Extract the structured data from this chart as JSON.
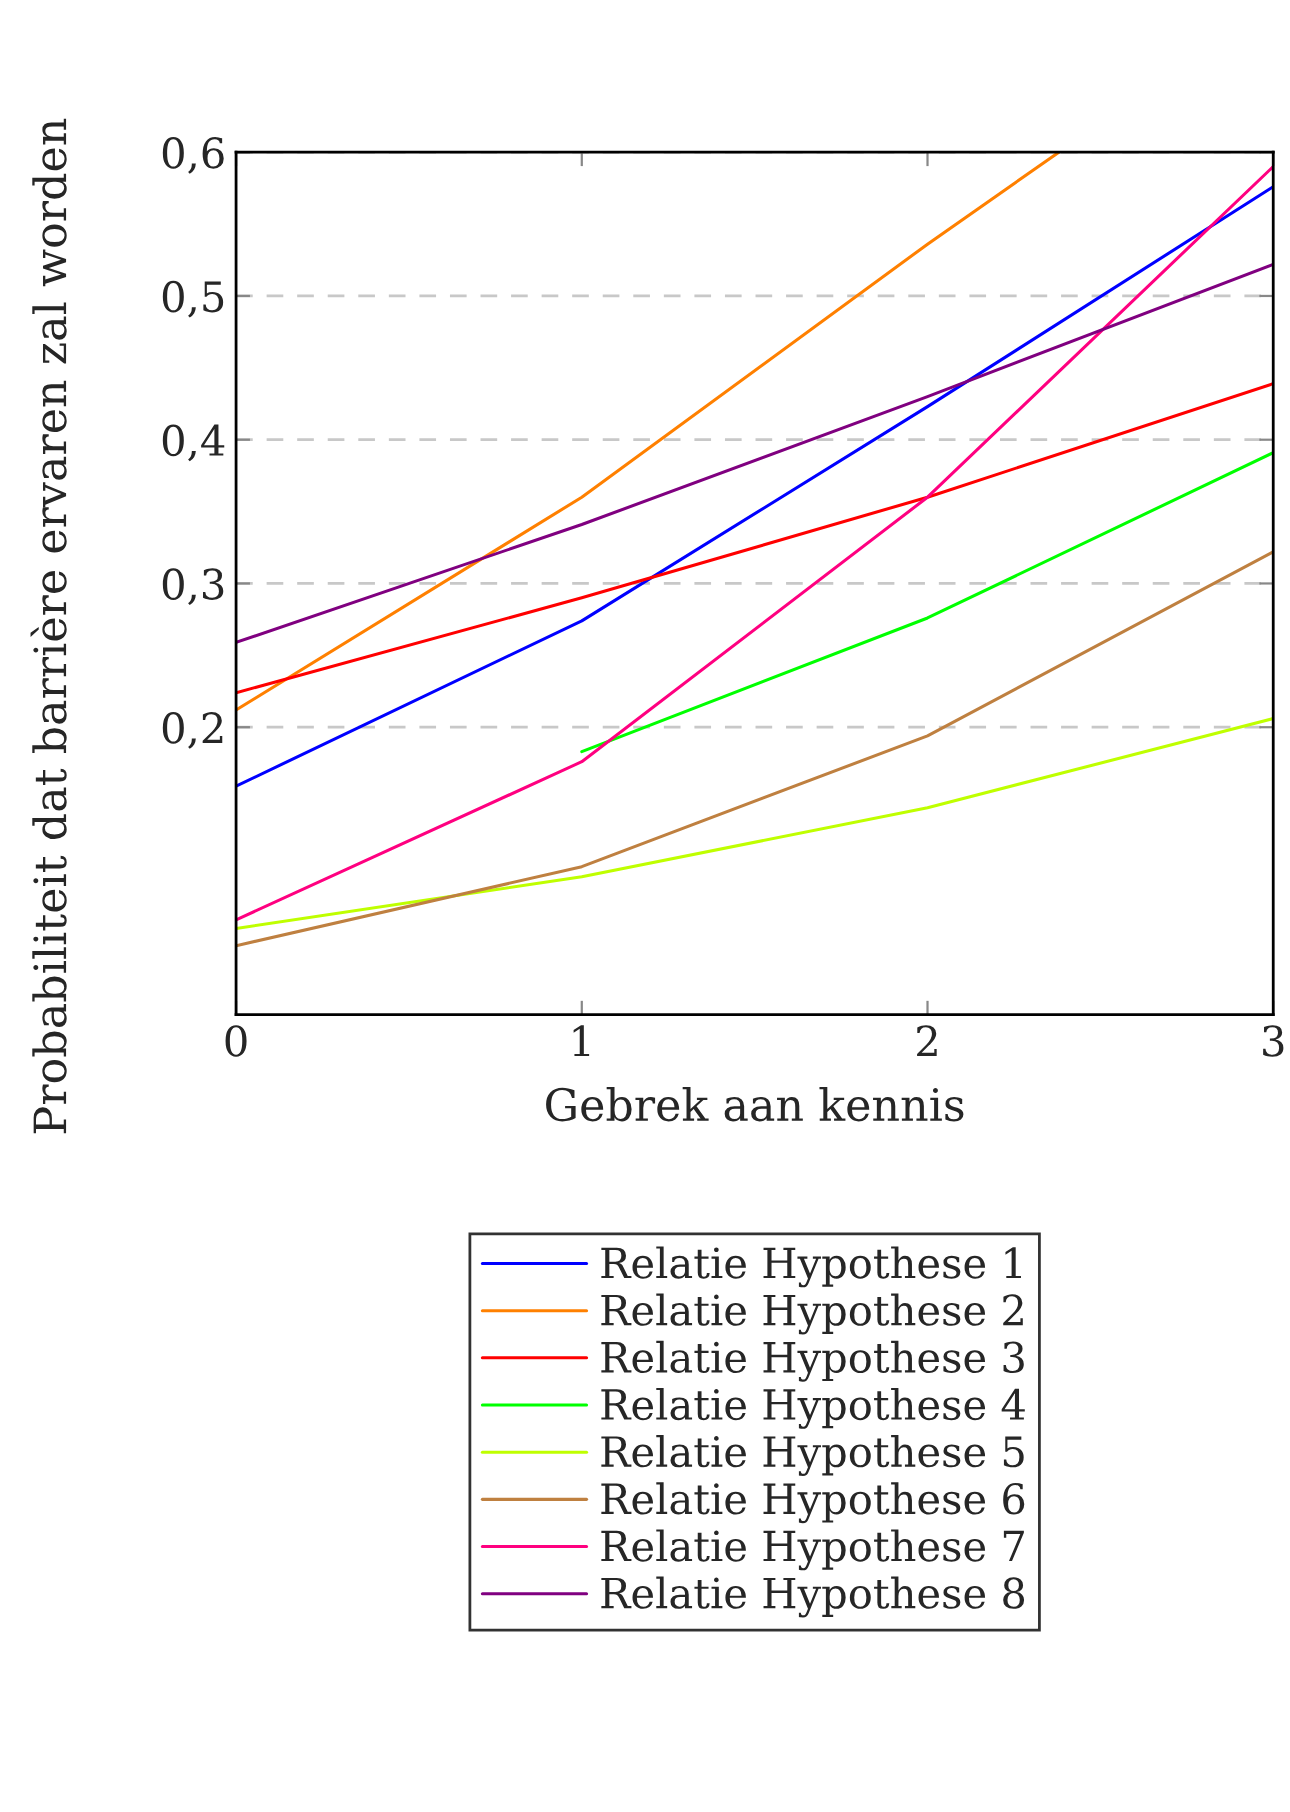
{
  "chart_data": {
    "type": "line",
    "xlabel": "Gebrek aan kennis",
    "ylabel": "Probabiliteit dat barrière ervaren zal worden",
    "x": [
      0,
      1,
      2,
      3
    ],
    "series": [
      {
        "name": "Relatie Hypothese 1",
        "color": "#0000ff",
        "values": [
          0.159,
          0.274,
          0.423,
          0.576
        ]
      },
      {
        "name": "Relatie Hypothese 2",
        "color": "#ff8000",
        "x": [
          0,
          1,
          2,
          2.38
        ],
        "values": [
          0.212,
          0.36,
          0.536,
          0.6
        ]
      },
      {
        "name": "Relatie Hypothese 3",
        "color": "#ff0000",
        "values": [
          0.224,
          0.29,
          0.36,
          0.439
        ]
      },
      {
        "name": "Relatie Hypothese 4",
        "color": "#00ff00",
        "values": [
          null,
          0.183,
          0.276,
          0.391
        ]
      },
      {
        "name": "Relatie Hypothese 5",
        "color": "#bfff00",
        "values": [
          0.06,
          0.096,
          0.144,
          0.206
        ]
      },
      {
        "name": "Relatie Hypothese 6",
        "color": "#bf8040",
        "values": [
          0.048,
          0.103,
          0.194,
          0.322
        ]
      },
      {
        "name": "Relatie Hypothese 7",
        "color": "#ff0080",
        "values": [
          0.066,
          0.176,
          0.36,
          0.59
        ]
      },
      {
        "name": "Relatie Hypothese 8",
        "color": "#800080",
        "values": [
          0.259,
          0.341,
          0.43,
          0.522
        ]
      }
    ],
    "xlim": [
      0,
      3
    ],
    "xticks": [
      0,
      1,
      2,
      3
    ],
    "ylim": [
      0,
      0.6
    ],
    "yticks": [
      {
        "value": 0.2,
        "label": "0,2"
      },
      {
        "value": 0.3,
        "label": "0,3"
      },
      {
        "value": 0.4,
        "label": "0,4"
      },
      {
        "value": 0.5,
        "label": "0,5"
      },
      {
        "value": 0.6,
        "label": "0,6"
      }
    ],
    "grid": "y",
    "legend": "bottom",
    "marker": "none",
    "line_style": "solid"
  }
}
